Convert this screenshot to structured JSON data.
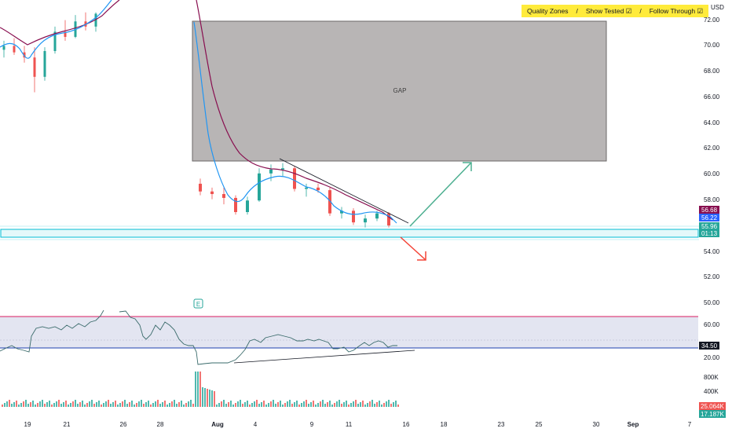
{
  "toolbar": {
    "quality_zones": "Quality Zones",
    "sep": "/",
    "show_tested": "Show Tested ☑",
    "follow_through": "Follow Through ☑"
  },
  "axis": {
    "currency": "USD",
    "price_ticks": [
      "72.00",
      "70.00",
      "68.00",
      "66.00",
      "64.00",
      "62.00",
      "60.00",
      "58.00",
      "54.00",
      "52.00",
      "50.00"
    ],
    "rsi_ticks": [
      "60.00",
      "20.00"
    ],
    "volume_ticks": [
      "800K",
      "400K"
    ],
    "x_ticks": [
      "19",
      "21",
      "26",
      "28",
      "Aug",
      "4",
      "9",
      "11",
      "16",
      "18",
      "23",
      "25",
      "30",
      "Sep",
      "7"
    ]
  },
  "price_labels": {
    "ema_slow": "56.68",
    "ema_fast": "56.22",
    "last": "55.96",
    "countdown": "01:13",
    "rsi_level": "34.50",
    "vol_1": "25.064K",
    "vol_2": "17.187K"
  },
  "annotations": {
    "gap": "GAP",
    "earnings": "E"
  },
  "colors": {
    "up": "#26a69a",
    "down": "#ef5350",
    "ema_fast": "#2196f3",
    "ema_slow": "#880e4f",
    "gap_box": "#a09c9c",
    "zone": "#00bcd4",
    "arrow_up": "#4caf90",
    "arrow_down": "#f44336",
    "rsi_band": "#d1d4e8",
    "rsi_line": "#3a6b6b"
  },
  "chart_data": {
    "type": "candlestick",
    "ylim": [
      50,
      72.5
    ],
    "gap_zone": [
      61.2,
      71.9
    ],
    "support_zone": [
      54.9,
      55.55
    ],
    "ema_fast_last": 56.22,
    "ema_slow_last": 56.68,
    "last_price": 55.96,
    "rsi_band": [
      34.5,
      70
    ],
    "rsi_last": 34.5,
    "candles_jul": [
      {
        "o": 69.6,
        "h": 70.3,
        "l": 69.0,
        "c": 69.9
      },
      {
        "o": 69.9,
        "h": 70.5,
        "l": 69.2,
        "c": 69.4
      },
      {
        "o": 69.4,
        "h": 69.9,
        "l": 68.6,
        "c": 69.0
      },
      {
        "o": 69.0,
        "h": 69.8,
        "l": 66.3,
        "c": 67.5
      },
      {
        "o": 67.5,
        "h": 69.8,
        "l": 67.2,
        "c": 69.5
      },
      {
        "o": 69.5,
        "h": 71.4,
        "l": 69.3,
        "c": 71.0
      },
      {
        "o": 71.0,
        "h": 71.9,
        "l": 70.3,
        "c": 70.6
      },
      {
        "o": 70.6,
        "h": 72.3,
        "l": 70.5,
        "c": 71.8
      },
      {
        "o": 71.8,
        "h": 72.5,
        "l": 71.1,
        "c": 71.4
      },
      {
        "o": 71.4,
        "h": 72.5,
        "l": 71.0,
        "c": 72.4
      }
    ],
    "candles_aug": [
      {
        "o": 59.2,
        "h": 59.6,
        "l": 58.3,
        "c": 58.6
      },
      {
        "o": 58.6,
        "h": 58.9,
        "l": 58.0,
        "c": 58.4
      },
      {
        "o": 58.4,
        "h": 58.9,
        "l": 57.6,
        "c": 58.1
      },
      {
        "o": 58.1,
        "h": 58.3,
        "l": 56.8,
        "c": 57.0
      },
      {
        "o": 57.0,
        "h": 58.2,
        "l": 56.8,
        "c": 57.9
      },
      {
        "o": 57.9,
        "h": 60.4,
        "l": 57.8,
        "c": 60.0
      },
      {
        "o": 60.0,
        "h": 60.7,
        "l": 59.4,
        "c": 60.3
      },
      {
        "o": 60.3,
        "h": 60.8,
        "l": 59.8,
        "c": 60.4
      },
      {
        "o": 60.4,
        "h": 60.6,
        "l": 58.6,
        "c": 58.8
      },
      {
        "o": 58.8,
        "h": 59.2,
        "l": 58.2,
        "c": 58.9
      },
      {
        "o": 58.9,
        "h": 59.2,
        "l": 58.5,
        "c": 58.7
      },
      {
        "o": 58.7,
        "h": 58.9,
        "l": 56.7,
        "c": 56.9
      },
      {
        "o": 56.9,
        "h": 57.4,
        "l": 56.5,
        "c": 57.1
      },
      {
        "o": 57.1,
        "h": 57.3,
        "l": 56.0,
        "c": 56.2
      },
      {
        "o": 56.2,
        "h": 56.8,
        "l": 55.8,
        "c": 56.5
      },
      {
        "o": 56.5,
        "h": 57.1,
        "l": 56.3,
        "c": 56.9
      },
      {
        "o": 56.9,
        "h": 57.0,
        "l": 55.8,
        "c": 55.96
      }
    ]
  }
}
